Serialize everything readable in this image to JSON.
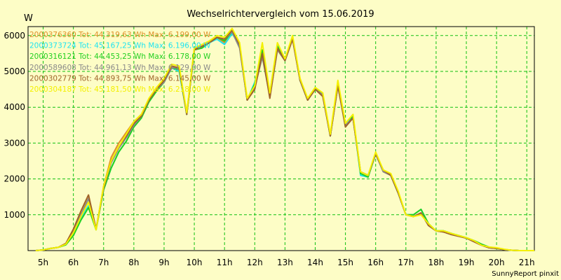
{
  "chart_data": {
    "type": "line",
    "title": "Wechselrichtervergleich vom 15.06.2019",
    "ylabel": "W",
    "xlabel": "",
    "credit": "SunnyReport pinxit",
    "grid": true,
    "legend_placement": "top-left, inside plot",
    "xlim": [
      4.5,
      21.25
    ],
    "ylim": [
      0,
      6250
    ],
    "x_ticks": [
      5,
      6,
      7,
      8,
      9,
      10,
      11,
      12,
      13,
      14,
      15,
      16,
      17,
      18,
      19,
      20,
      21
    ],
    "x_tick_labels": [
      "5h",
      "6h",
      "7h",
      "8h",
      "9h",
      "10h",
      "11h",
      "12h",
      "13h",
      "14h",
      "15h",
      "16h",
      "17h",
      "18h",
      "19h",
      "20h",
      "21h"
    ],
    "y_ticks": [
      1000,
      2000,
      3000,
      4000,
      5000,
      6000
    ],
    "y_tick_labels": [
      "1000",
      "2000",
      "3000",
      "4000",
      "5000",
      "6000"
    ],
    "x": [
      4.75,
      5.0,
      5.25,
      5.5,
      5.75,
      6.0,
      6.25,
      6.5,
      6.75,
      7.0,
      7.25,
      7.5,
      7.75,
      8.0,
      8.25,
      8.5,
      8.75,
      9.0,
      9.25,
      9.5,
      9.75,
      10.0,
      10.25,
      10.5,
      10.75,
      11.0,
      11.25,
      11.5,
      11.75,
      12.0,
      12.25,
      12.5,
      12.75,
      13.0,
      13.25,
      13.5,
      13.75,
      14.0,
      14.25,
      14.5,
      14.75,
      15.0,
      15.25,
      15.5,
      15.75,
      16.0,
      16.25,
      16.5,
      16.75,
      17.0,
      17.25,
      17.5,
      17.75,
      18.0,
      18.25,
      18.5,
      18.75,
      19.0,
      19.25,
      19.5,
      19.75,
      20.0,
      20.25,
      20.5,
      20.75,
      21.0,
      21.25
    ],
    "series": [
      {
        "name": "2000376360 Tot: 44.319,63 Wh Max: 6.199,00 W",
        "color": "#e0902a",
        "values": [
          0,
          20,
          60,
          90,
          200,
          600,
          1100,
          1550,
          600,
          1800,
          2600,
          3000,
          3300,
          3600,
          3800,
          4200,
          4550,
          4750,
          5100,
          5100,
          3800,
          5650,
          5700,
          5800,
          5950,
          5800,
          6150,
          5700,
          4200,
          4550,
          5500,
          4300,
          5600,
          5300,
          5900,
          4800,
          4200,
          4500,
          4350,
          3200,
          4600,
          3500,
          3700,
          2200,
          2100,
          2700,
          2200,
          2100,
          1600,
          1000,
          950,
          1050,
          700,
          550,
          520,
          450,
          400,
          350,
          250,
          150,
          80,
          60,
          30,
          10,
          0,
          0,
          0
        ]
      },
      {
        "name": "2000373724 Tot: 45.167,25 Wh Max: 6.196,00 W",
        "color": "#1ee4f0",
        "values": [
          0,
          20,
          60,
          90,
          170,
          450,
          900,
          1250,
          600,
          1700,
          2300,
          2750,
          3050,
          3450,
          3700,
          4150,
          4450,
          4700,
          5100,
          5000,
          3800,
          5600,
          5650,
          5800,
          5900,
          5750,
          6050,
          5750,
          4200,
          4700,
          5400,
          4400,
          5750,
          5300,
          5950,
          4750,
          4200,
          4550,
          4350,
          3200,
          4700,
          3500,
          3750,
          2100,
          2050,
          2700,
          2250,
          2100,
          1600,
          1000,
          1000,
          1150,
          750,
          550,
          550,
          480,
          420,
          360,
          280,
          180,
          100,
          70,
          30,
          10,
          0,
          0,
          0
        ]
      },
      {
        "name": "2000316121 Tot: 44.453,25 Wh Max: 6.178,00 W",
        "color": "#22d020",
        "values": [
          0,
          20,
          60,
          90,
          160,
          420,
          850,
          1200,
          580,
          1700,
          2300,
          2750,
          3050,
          3450,
          3700,
          4150,
          4450,
          4700,
          5100,
          5050,
          3800,
          5600,
          5650,
          5800,
          5950,
          5850,
          6100,
          5700,
          4200,
          4650,
          5600,
          4300,
          5700,
          5300,
          5950,
          4750,
          4200,
          4550,
          4350,
          3200,
          4650,
          3450,
          3750,
          2150,
          2050,
          2700,
          2250,
          2100,
          1600,
          1000,
          1000,
          1150,
          750,
          550,
          550,
          480,
          420,
          360,
          280,
          180,
          100,
          60,
          30,
          10,
          0,
          0,
          0
        ]
      },
      {
        "name": "2000589608 Tot: 44.961,13 Wh Max: 6.129,00 W",
        "color": "#8a8a8a",
        "values": [
          0,
          20,
          60,
          90,
          190,
          550,
          1000,
          1450,
          600,
          1750,
          2450,
          2850,
          3150,
          3500,
          3750,
          4200,
          4500,
          4700,
          5100,
          5100,
          3800,
          5600,
          5700,
          5800,
          5950,
          5900,
          6100,
          5650,
          4200,
          4550,
          5400,
          4300,
          5600,
          5300,
          5900,
          4750,
          4200,
          4500,
          4350,
          3200,
          4600,
          3500,
          3700,
          2200,
          2100,
          2700,
          2200,
          2100,
          1600,
          1000,
          950,
          1050,
          700,
          550,
          520,
          450,
          400,
          350,
          250,
          150,
          80,
          60,
          30,
          10,
          0,
          0,
          0
        ]
      },
      {
        "name": "2000302779 Tot: 44.893,75 Wh Max: 6.145,00 W",
        "color": "#a0642a",
        "values": [
          0,
          20,
          60,
          90,
          200,
          600,
          1100,
          1550,
          600,
          1750,
          2500,
          2900,
          3200,
          3550,
          3750,
          4200,
          4500,
          4750,
          5150,
          5100,
          3800,
          5600,
          5700,
          5800,
          5950,
          5900,
          6150,
          5750,
          4200,
          4500,
          5500,
          4250,
          5650,
          5300,
          5900,
          4750,
          4200,
          4500,
          4300,
          3200,
          4600,
          3450,
          3700,
          2200,
          2100,
          2700,
          2250,
          2100,
          1600,
          1000,
          950,
          1050,
          700,
          550,
          520,
          450,
          400,
          350,
          250,
          150,
          80,
          60,
          30,
          10,
          0,
          0,
          0
        ]
      },
      {
        "name": "2000304187 Tot: 45.181,50 Wh Max: 6.218,00 W",
        "color": "#f4f000",
        "values": [
          0,
          20,
          60,
          90,
          180,
          500,
          950,
          1350,
          580,
          1800,
          2500,
          2900,
          3250,
          3600,
          3800,
          4250,
          4550,
          4800,
          5200,
          5150,
          3850,
          5650,
          5750,
          5850,
          6000,
          5950,
          6200,
          5800,
          4250,
          4600,
          5800,
          4400,
          5800,
          5350,
          6000,
          4800,
          4250,
          4550,
          4400,
          3250,
          4750,
          3550,
          3800,
          2200,
          2100,
          2750,
          2250,
          2150,
          1650,
          1000,
          950,
          1000,
          750,
          550,
          550,
          480,
          420,
          360,
          280,
          150,
          100,
          80,
          40,
          10,
          0,
          0,
          0
        ]
      }
    ]
  }
}
